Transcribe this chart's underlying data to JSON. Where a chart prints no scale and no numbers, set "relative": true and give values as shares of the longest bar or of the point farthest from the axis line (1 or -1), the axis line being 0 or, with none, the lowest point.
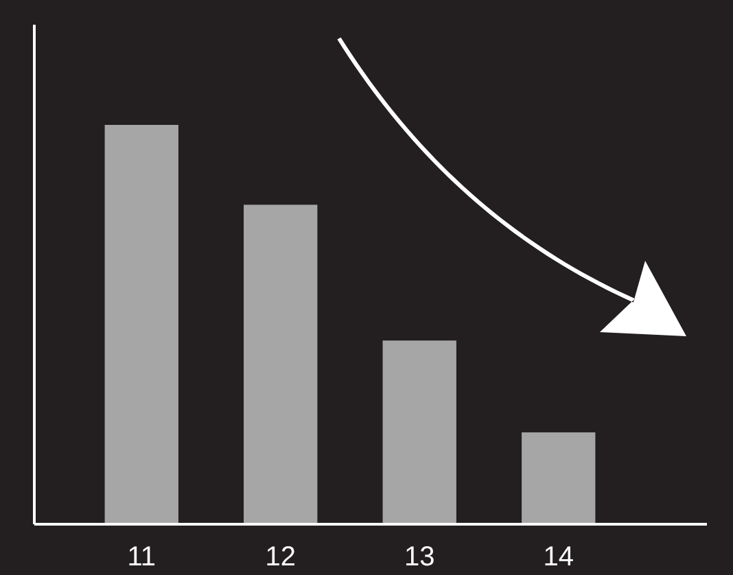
{
  "chart_data": {
    "type": "bar",
    "relative": true,
    "categories": [
      "11",
      "12",
      "13",
      "14"
    ],
    "values": [
      1,
      0.8,
      0.46,
      0.23
    ],
    "color": "#a7a6a6"
  }
}
